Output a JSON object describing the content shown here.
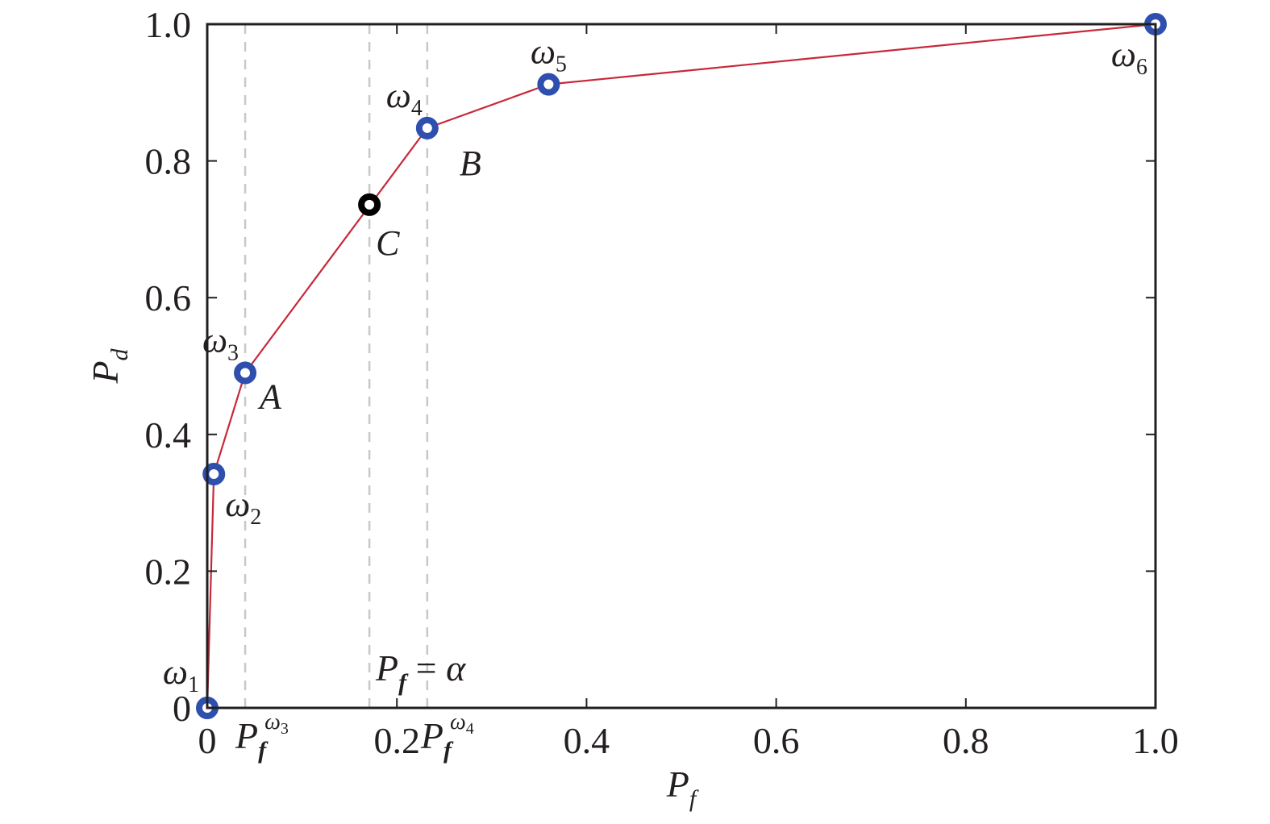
{
  "chart_data": {
    "type": "line",
    "xlabel": "P",
    "xlabel_sub": "f",
    "ylabel": "P",
    "ylabel_sub": "d",
    "xlim": [
      0,
      1.0
    ],
    "ylim": [
      0,
      1.0
    ],
    "grid": false,
    "colors": {
      "line": "#c8283a",
      "marker": "#2e4fae",
      "marker_special": "#000000",
      "dashed": "#c8c8c8",
      "axis": "#231f20"
    },
    "x_ticks": [
      {
        "value": 0,
        "label": "0"
      },
      {
        "value": 0.2,
        "label": "0.2"
      },
      {
        "value": 0.4,
        "label": "0.4"
      },
      {
        "value": 0.6,
        "label": "0.6"
      },
      {
        "value": 0.8,
        "label": "0.8"
      },
      {
        "value": 1.0,
        "label": "1.0"
      }
    ],
    "y_ticks": [
      {
        "value": 0,
        "label": "0"
      },
      {
        "value": 0.2,
        "label": "0.2"
      },
      {
        "value": 0.4,
        "label": "0.4"
      },
      {
        "value": 0.6,
        "label": "0.6"
      },
      {
        "value": 0.8,
        "label": "0.8"
      },
      {
        "value": 1.0,
        "label": "1.0"
      }
    ],
    "series": [
      {
        "x": [
          0,
          0.007,
          0.04,
          0.232,
          0.36,
          1.0
        ],
        "y": [
          0,
          0.342,
          0.49,
          0.848,
          0.912,
          1.0
        ],
        "point_labels": [
          {
            "sym": "ω",
            "sub": "1",
            "pos": "above-left"
          },
          {
            "sym": "ω",
            "sub": "2",
            "pos": "below-right"
          },
          {
            "sym": "ω",
            "sub": "3",
            "pos": "above-left"
          },
          {
            "sym": "ω",
            "sub": "4",
            "pos": "above-left"
          },
          {
            "sym": "ω",
            "sub": "5",
            "pos": "above"
          },
          {
            "sym": "ω",
            "sub": "6",
            "pos": "below-left"
          }
        ]
      }
    ],
    "special_point": {
      "x": 0.171,
      "y": 0.736,
      "label": "C"
    },
    "dashed_lines": [
      {
        "x": 0.04,
        "name": "pf-omega3-line"
      },
      {
        "x": 0.171,
        "name": "pf-alpha-line"
      },
      {
        "x": 0.232,
        "name": "pf-omega4-line"
      }
    ],
    "annotations": [
      {
        "text": "A",
        "x": 0.04,
        "y": 0.49,
        "pos": "below-right"
      },
      {
        "text": "B",
        "x": 0.232,
        "y": 0.848,
        "pos": "below-right"
      }
    ],
    "equation": {
      "lhs": "P",
      "lhs_sub": "f",
      "op": " = ",
      "rhs": "α"
    },
    "x_extra_tick_labels": [
      {
        "x": 0.04,
        "main": "P",
        "sub": "f",
        "sup_sym": "ω",
        "sup_sub": "3"
      },
      {
        "x": 0.232,
        "main": "P",
        "sub": "f",
        "sup_sym": "ω",
        "sup_sub": "4"
      }
    ]
  }
}
